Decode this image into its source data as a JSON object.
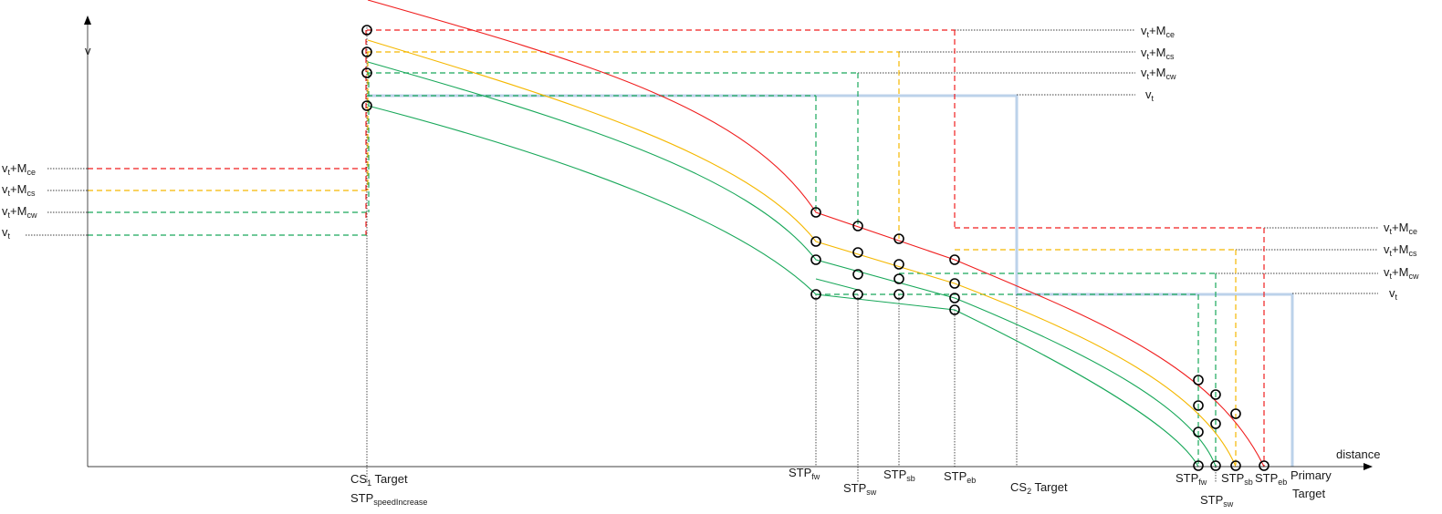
{
  "axis": {
    "y_label": "v",
    "x_label": "distance"
  },
  "levels": [
    {
      "key": "ce",
      "color": "#f01e1e",
      "label_base": "v",
      "label_sub1": "t",
      "label_mid": "+M",
      "label_sub2": "ce"
    },
    {
      "key": "cs",
      "color": "#f5b800",
      "label_base": "v",
      "label_sub1": "t",
      "label_mid": "+M",
      "label_sub2": "cs"
    },
    {
      "key": "cw",
      "color": "#19a85a",
      "label_base": "v",
      "label_sub1": "t",
      "label_mid": "+M",
      "label_sub2": "cw"
    },
    {
      "key": "t",
      "color": "#bcd2ea",
      "label_base": "v",
      "label_sub1": "t",
      "label_mid": "",
      "label_sub2": ""
    }
  ],
  "bottom_labels": {
    "cs1_target": {
      "base": "CS",
      "sub": "1",
      "rest": " Target"
    },
    "stp_speed_increase": {
      "base": "STP",
      "sub": "speedIncrease"
    },
    "stp_fw_1": {
      "base": "STP",
      "sub": "fw"
    },
    "stp_sw_1": {
      "base": "STP",
      "sub": "sw"
    },
    "stp_sb_1": {
      "base": "STP",
      "sub": "sb"
    },
    "stp_eb_1": {
      "base": "STP",
      "sub": "eb"
    },
    "cs2_target": {
      "base": "CS",
      "sub": "2",
      "rest": " Target"
    },
    "stp_fw_2": {
      "base": "STP",
      "sub": "fw"
    },
    "stp_sw_2": {
      "base": "STP",
      "sub": "sw"
    },
    "stp_sb_2": {
      "base": "STP",
      "sub": "sb"
    },
    "stp_eb_2": {
      "base": "STP",
      "sub": "eb"
    },
    "primary_target_1": "Primary",
    "primary_target_2": "Target"
  },
  "colors": {
    "red": "#f01e1e",
    "yellow": "#f5b800",
    "green": "#19a85a",
    "blue": "#bcd2ea"
  }
}
